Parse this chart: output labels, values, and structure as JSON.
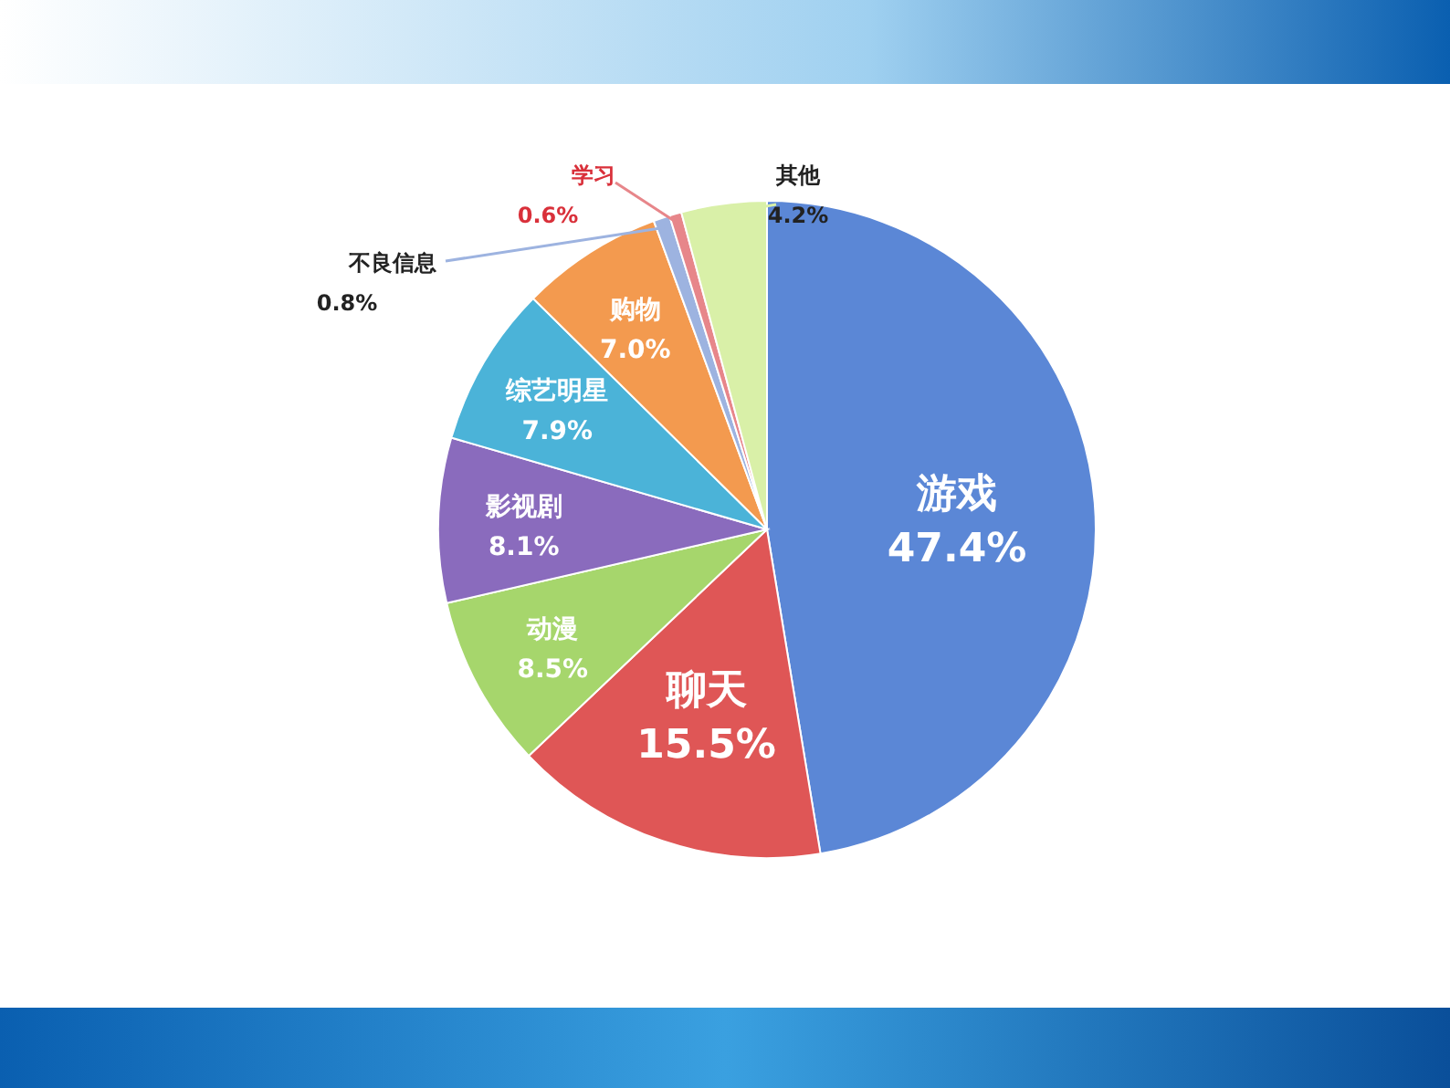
{
  "chart_data": {
    "type": "pie",
    "categories": [
      "游戏",
      "聊天",
      "动漫",
      "影视剧",
      "综艺明星",
      "购物",
      "不良信息",
      "学习",
      "其他"
    ],
    "values": [
      47.4,
      15.5,
      8.5,
      8.1,
      7.9,
      7.0,
      0.8,
      0.6,
      4.2
    ],
    "colors": [
      "#5b87d6",
      "#df5656",
      "#a6d66c",
      "#8a6bbd",
      "#4bb3d8",
      "#f39a4f",
      "#9db3e0",
      "#e7868a",
      "#d9f0a8"
    ],
    "value_labels": [
      "47.4%",
      "15.5%",
      "8.5%",
      "8.1%",
      "7.9%",
      "7.0%",
      "0.8%",
      "0.6%",
      "4.2%"
    ]
  }
}
